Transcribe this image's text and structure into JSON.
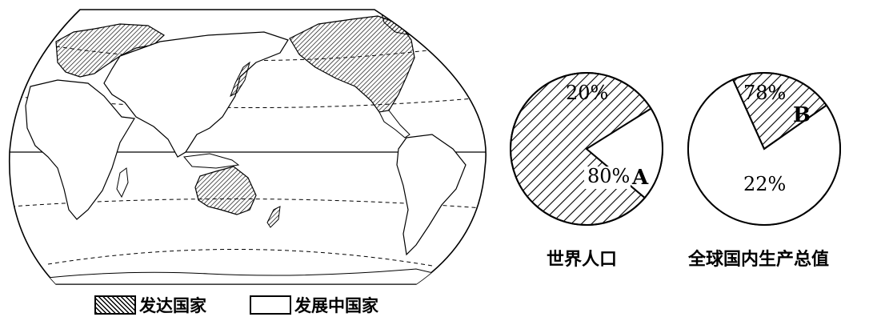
{
  "map": {
    "legend": [
      {
        "label": "发达国家",
        "style": "hatched"
      },
      {
        "label": "发展中国家",
        "style": "blank"
      }
    ]
  },
  "chart_data": [
    {
      "type": "pie",
      "title": "世界人口",
      "slices": [
        {
          "label": "A",
          "value": 80,
          "display": "80%",
          "style": "hatched"
        },
        {
          "label": "",
          "value": 20,
          "display": "20%",
          "style": "blank"
        }
      ]
    },
    {
      "type": "pie",
      "title": "全球国内生产总值",
      "slices": [
        {
          "label": "B",
          "value": 78,
          "display": "78%",
          "style": "blank"
        },
        {
          "label": "",
          "value": 22,
          "display": "22%",
          "style": "hatched"
        }
      ]
    }
  ],
  "colors": {
    "ink": "#000000",
    "background": "#ffffff"
  }
}
